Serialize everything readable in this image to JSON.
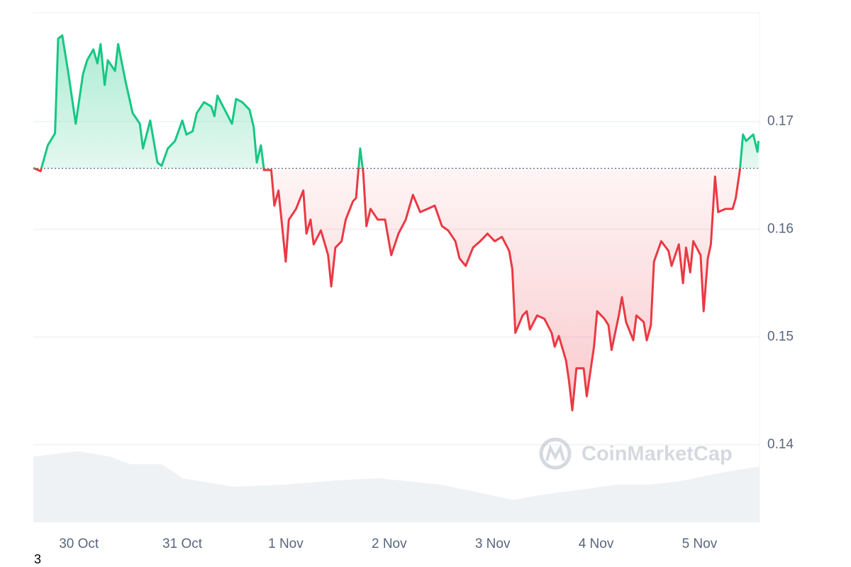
{
  "chart_data": {
    "type": "line",
    "x": [
      -0.44,
      -0.37,
      -0.3,
      -0.23,
      -0.2,
      -0.16,
      -0.1,
      -0.03,
      0.04,
      0.08,
      0.14,
      0.18,
      0.21,
      0.25,
      0.28,
      0.35,
      0.38,
      0.45,
      0.52,
      0.59,
      0.62,
      0.69,
      0.76,
      0.8,
      0.86,
      0.93,
      1.0,
      1.04,
      1.1,
      1.14,
      1.21,
      1.28,
      1.31,
      1.34,
      1.41,
      1.48,
      1.52,
      1.58,
      1.65,
      1.69,
      1.72,
      1.76,
      1.79,
      1.86,
      1.89,
      1.93,
      2.0,
      2.03,
      2.1,
      2.17,
      2.2,
      2.24,
      2.27,
      2.34,
      2.41,
      2.44,
      2.48,
      2.54,
      2.58,
      2.65,
      2.68,
      2.72,
      2.75,
      2.78,
      2.82,
      2.89,
      2.96,
      3.02,
      3.09,
      3.16,
      3.23,
      3.3,
      3.37,
      3.44,
      3.51,
      3.57,
      3.64,
      3.68,
      3.74,
      3.81,
      3.88,
      3.95,
      4.02,
      4.09,
      4.16,
      4.19,
      4.22,
      4.29,
      4.33,
      4.36,
      4.43,
      4.5,
      4.57,
      4.6,
      4.64,
      4.71,
      4.74,
      4.77,
      4.81,
      4.88,
      4.91,
      4.98,
      5.01,
      5.08,
      5.12,
      5.15,
      5.22,
      5.25,
      5.29,
      5.36,
      5.39,
      5.46,
      5.49,
      5.53,
      5.56,
      5.63,
      5.7,
      5.73,
      5.8,
      5.84,
      5.87,
      5.91,
      5.94,
      6.01,
      6.04,
      6.08,
      6.11,
      6.15,
      6.18,
      6.25,
      6.32,
      6.35,
      6.39,
      6.42,
      6.45,
      6.52,
      6.56,
      6.57
    ],
    "values": [
      0.1657,
      0.1654,
      0.1678,
      0.1689,
      0.1777,
      0.178,
      0.1744,
      0.1698,
      0.1744,
      0.1757,
      0.1767,
      0.1754,
      0.1772,
      0.1734,
      0.1757,
      0.1747,
      0.1772,
      0.1738,
      0.1708,
      0.1698,
      0.1675,
      0.1701,
      0.1662,
      0.1659,
      0.1675,
      0.1682,
      0.1701,
      0.1688,
      0.1691,
      0.1708,
      0.1718,
      0.1714,
      0.1705,
      0.1724,
      0.1711,
      0.1698,
      0.1721,
      0.1718,
      0.1711,
      0.1695,
      0.1662,
      0.1678,
      0.1655,
      0.1655,
      0.1622,
      0.1636,
      0.157,
      0.1609,
      0.1619,
      0.1636,
      0.1596,
      0.1609,
      0.1586,
      0.1599,
      0.1576,
      0.1547,
      0.1583,
      0.1589,
      0.1609,
      0.1626,
      0.1629,
      0.1675,
      0.1652,
      0.1603,
      0.1619,
      0.1609,
      0.1609,
      0.1576,
      0.1596,
      0.1609,
      0.1632,
      0.1616,
      0.1619,
      0.1622,
      0.1603,
      0.1599,
      0.1589,
      0.1573,
      0.1566,
      0.1583,
      0.1589,
      0.1596,
      0.1589,
      0.1593,
      0.158,
      0.1563,
      0.1504,
      0.152,
      0.1524,
      0.1507,
      0.152,
      0.1517,
      0.1504,
      0.1491,
      0.1501,
      0.1478,
      0.1458,
      0.1432,
      0.1471,
      0.1471,
      0.1445,
      0.1491,
      0.1524,
      0.1517,
      0.1511,
      0.1488,
      0.152,
      0.1537,
      0.1514,
      0.1497,
      0.152,
      0.1514,
      0.1497,
      0.1511,
      0.157,
      0.1589,
      0.158,
      0.1566,
      0.1586,
      0.155,
      0.1583,
      0.156,
      0.1589,
      0.1576,
      0.1524,
      0.1573,
      0.1586,
      0.1649,
      0.1616,
      0.1619,
      0.1619,
      0.1629,
      0.1655,
      0.1688,
      0.1682,
      0.1688,
      0.1672,
      0.1682
    ],
    "baseline": 0.16566,
    "up_color": "#16c784",
    "down_color": "#ea3943",
    "volume": {
      "color": "#eff2f5",
      "x": [
        -0.44,
        -0.2,
        0,
        0.3,
        0.5,
        0.8,
        0.85,
        1.0,
        1.5,
        2.0,
        2.5,
        2.9,
        3.5,
        4.0,
        4.2,
        4.5,
        4.9,
        5.2,
        5.5,
        5.8,
        6.2,
        6.58
      ],
      "values": [
        0.1389,
        0.1392,
        0.1394,
        0.1389,
        0.1382,
        0.1382,
        0.1379,
        0.1369,
        0.1361,
        0.1363,
        0.1367,
        0.1369,
        0.1363,
        0.1353,
        0.1349,
        0.1354,
        0.1359,
        0.1363,
        0.1363,
        0.1366,
        0.1374,
        0.138
      ]
    },
    "xlim": [
      -0.44,
      6.58
    ],
    "xticks": [
      {
        "value": 0,
        "label": "30 Oct"
      },
      {
        "value": 1,
        "label": "31 Oct"
      },
      {
        "value": 2,
        "label": "1 Nov"
      },
      {
        "value": 3,
        "label": "2 Nov"
      },
      {
        "value": 4,
        "label": "3 Nov"
      },
      {
        "value": 5,
        "label": "4 Nov"
      },
      {
        "value": 6,
        "label": "5 Nov"
      }
    ],
    "ylim": [
      0.1328,
      0.1801
    ],
    "yticks": [
      0.14,
      0.15,
      0.16,
      0.17
    ],
    "grid": true,
    "watermark": "CoinMarketCap",
    "footnote": "3"
  }
}
